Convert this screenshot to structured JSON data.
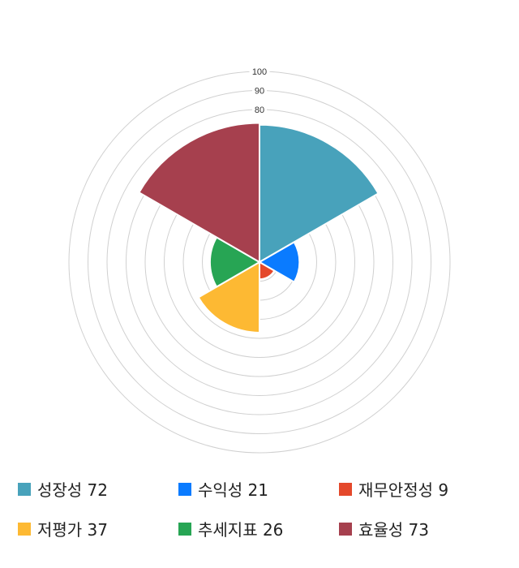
{
  "chart_data": {
    "type": "polar-area",
    "categories": [
      "성장성",
      "수익성",
      "재무안정성",
      "저평가",
      "추세지표",
      "효율성"
    ],
    "values": [
      72,
      21,
      9,
      37,
      26,
      73
    ],
    "colors": [
      "#48a2bb",
      "#0a7bff",
      "#e4482b",
      "#fdb933",
      "#27a554",
      "#a6404e"
    ],
    "rlim": [
      0,
      100
    ],
    "ring_step": 10,
    "tick_labels": [
      "80",
      "90",
      "100"
    ],
    "legend": [
      "성장성 72",
      "수익성 21",
      "재무안정성 9",
      "저평가 37",
      "추세지표 26",
      "효율성 73"
    ],
    "legend_placement": "bottom",
    "grid_color": "#d0d0d0"
  }
}
